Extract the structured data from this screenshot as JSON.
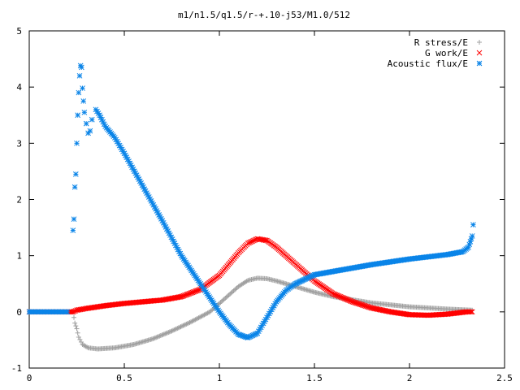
{
  "chart_data": {
    "type": "scatter",
    "title": "m1/n1.5/q1.5/r-+.10-j53/M1.0/512",
    "xlabel": "",
    "ylabel": "",
    "xlim": [
      0,
      2.5
    ],
    "ylim": [
      -1,
      5
    ],
    "x_ticks": [
      "0",
      "0.5",
      "1",
      "1.5",
      "2",
      "2.5"
    ],
    "y_ticks": [
      "-1",
      "0",
      "1",
      "2",
      "3",
      "4",
      "5"
    ],
    "grid": false,
    "legend_position": "top-right",
    "series": [
      {
        "name": "R stress/E",
        "marker": "plus",
        "color": "#a0a0a0",
        "points": [
          [
            0.0,
            0.0
          ],
          [
            0.1,
            0.0
          ],
          [
            0.2,
            0.0
          ],
          [
            0.23,
            0.0
          ],
          [
            0.24,
            -0.2
          ],
          [
            0.25,
            -0.3
          ],
          [
            0.26,
            -0.45
          ],
          [
            0.28,
            -0.58
          ],
          [
            0.31,
            -0.64
          ],
          [
            0.36,
            -0.66
          ],
          [
            0.45,
            -0.64
          ],
          [
            0.55,
            -0.58
          ],
          [
            0.65,
            -0.48
          ],
          [
            0.75,
            -0.34
          ],
          [
            0.85,
            -0.18
          ],
          [
            0.95,
            0.0
          ],
          [
            1.0,
            0.15
          ],
          [
            1.05,
            0.3
          ],
          [
            1.1,
            0.45
          ],
          [
            1.15,
            0.56
          ],
          [
            1.2,
            0.6
          ],
          [
            1.25,
            0.59
          ],
          [
            1.3,
            0.55
          ],
          [
            1.4,
            0.45
          ],
          [
            1.5,
            0.35
          ],
          [
            1.6,
            0.27
          ],
          [
            1.8,
            0.16
          ],
          [
            2.0,
            0.09
          ],
          [
            2.2,
            0.05
          ],
          [
            2.33,
            0.03
          ]
        ]
      },
      {
        "name": "G work/E",
        "marker": "cross",
        "color": "#ff0000",
        "points": [
          [
            0.0,
            0.0
          ],
          [
            0.1,
            0.0
          ],
          [
            0.2,
            0.0
          ],
          [
            0.23,
            0.0
          ],
          [
            0.25,
            0.03
          ],
          [
            0.3,
            0.06
          ],
          [
            0.4,
            0.11
          ],
          [
            0.5,
            0.15
          ],
          [
            0.6,
            0.18
          ],
          [
            0.7,
            0.21
          ],
          [
            0.8,
            0.27
          ],
          [
            0.9,
            0.4
          ],
          [
            1.0,
            0.65
          ],
          [
            1.1,
            1.05
          ],
          [
            1.15,
            1.22
          ],
          [
            1.2,
            1.3
          ],
          [
            1.25,
            1.27
          ],
          [
            1.3,
            1.15
          ],
          [
            1.4,
            0.85
          ],
          [
            1.5,
            0.55
          ],
          [
            1.6,
            0.32
          ],
          [
            1.7,
            0.18
          ],
          [
            1.8,
            0.07
          ],
          [
            1.9,
            0.0
          ],
          [
            2.0,
            -0.05
          ],
          [
            2.1,
            -0.06
          ],
          [
            2.2,
            -0.04
          ],
          [
            2.3,
            0.0
          ],
          [
            2.33,
            0.0
          ]
        ]
      },
      {
        "name": "Acoustic flux/E",
        "marker": "star",
        "color": "#0a84e8",
        "points": [
          [
            0.0,
            0.0
          ],
          [
            0.1,
            0.0
          ],
          [
            0.2,
            0.0
          ],
          [
            0.23,
            1.45
          ],
          [
            0.235,
            1.65
          ],
          [
            0.24,
            2.22
          ],
          [
            0.245,
            2.45
          ],
          [
            0.25,
            3.0
          ],
          [
            0.255,
            3.5
          ],
          [
            0.26,
            3.9
          ],
          [
            0.265,
            4.2
          ],
          [
            0.27,
            4.38
          ],
          [
            0.275,
            4.35
          ],
          [
            0.28,
            3.98
          ],
          [
            0.285,
            3.75
          ],
          [
            0.29,
            3.55
          ],
          [
            0.3,
            3.35
          ],
          [
            0.31,
            3.18
          ],
          [
            0.32,
            3.22
          ],
          [
            0.33,
            3.42
          ],
          [
            0.35,
            3.6
          ],
          [
            0.37,
            3.5
          ],
          [
            0.4,
            3.3
          ],
          [
            0.45,
            3.1
          ],
          [
            0.5,
            2.82
          ],
          [
            0.6,
            2.22
          ],
          [
            0.7,
            1.62
          ],
          [
            0.8,
            1.0
          ],
          [
            0.9,
            0.5
          ],
          [
            1.0,
            0.0
          ],
          [
            1.05,
            -0.22
          ],
          [
            1.1,
            -0.4
          ],
          [
            1.15,
            -0.46
          ],
          [
            1.2,
            -0.38
          ],
          [
            1.25,
            -0.1
          ],
          [
            1.3,
            0.18
          ],
          [
            1.35,
            0.38
          ],
          [
            1.4,
            0.5
          ],
          [
            1.5,
            0.66
          ],
          [
            1.6,
            0.72
          ],
          [
            1.8,
            0.84
          ],
          [
            2.0,
            0.94
          ],
          [
            2.2,
            1.02
          ],
          [
            2.28,
            1.07
          ],
          [
            2.31,
            1.15
          ],
          [
            2.32,
            1.25
          ],
          [
            2.33,
            1.35
          ],
          [
            2.335,
            1.55
          ]
        ]
      }
    ]
  }
}
